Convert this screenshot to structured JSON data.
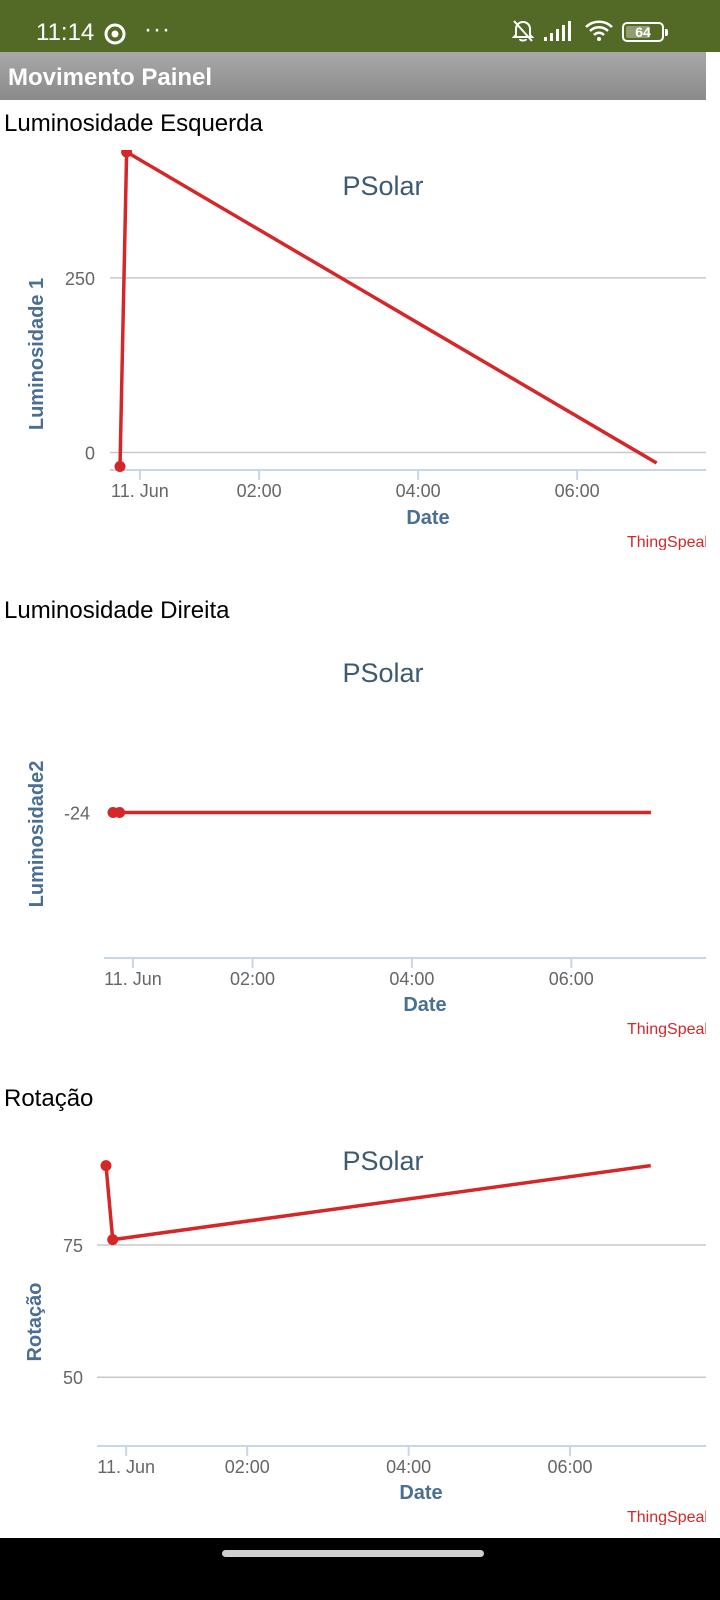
{
  "status_bar": {
    "time": "11:14",
    "more": "···",
    "battery": "64",
    "icons": [
      "record-icon",
      "bell-off-icon",
      "signal-icon",
      "wifi-icon",
      "battery-icon"
    ]
  },
  "app": {
    "title": "Movimento Painel"
  },
  "colors": {
    "status_bar": "#526a26",
    "app_bar": "#999999",
    "series": "#d62728",
    "title": "#3d5a73",
    "axis_label": "#4a6f93",
    "gridline": "#c8c8c8",
    "credits": "#d62728"
  },
  "sections": [
    {
      "title": "Luminosidade Esquerda",
      "chart_data": {
        "type": "line",
        "title": "PSolar",
        "xlabel": "Date",
        "ylabel": "Luminosidade 1",
        "credits": "ThingSpeak",
        "x_ticks": [
          "11. Jun",
          "02:00",
          "04:00",
          "06:00"
        ],
        "y_ticks": [
          "0",
          "250"
        ],
        "ylim": [
          -25,
          390
        ],
        "grid": true,
        "series": [
          {
            "x": [
              "00:15",
              "00:20",
              "07:00"
            ],
            "y": [
              -20,
              430,
              -15
            ]
          }
        ]
      }
    },
    {
      "title": "Luminosidade Direita",
      "chart_data": {
        "type": "line",
        "title": "PSolar",
        "xlabel": "Date",
        "ylabel": "Luminosidade2",
        "credits": "ThingSpeak",
        "x_ticks": [
          "11. Jun",
          "02:00",
          "04:00",
          "06:00"
        ],
        "y_ticks": [
          "-24"
        ],
        "ylim": [
          -30,
          -18
        ],
        "grid": false,
        "series": [
          {
            "x": [
              "00:15",
              "00:20",
              "07:00"
            ],
            "y": [
              -24,
              -24,
              -24
            ]
          }
        ]
      }
    },
    {
      "title": "Rotação",
      "chart_data": {
        "type": "line",
        "title": "PSolar",
        "xlabel": "Date",
        "ylabel": "Rotação",
        "credits": "ThingSpeak",
        "x_ticks": [
          "11. Jun",
          "02:00",
          "04:00",
          "06:00"
        ],
        "y_ticks": [
          "50",
          "75"
        ],
        "ylim": [
          37,
          92
        ],
        "grid": true,
        "series": [
          {
            "x": [
              "00:15",
              "00:20",
              "07:00"
            ],
            "y": [
              90,
              76,
              90
            ]
          }
        ]
      }
    }
  ]
}
